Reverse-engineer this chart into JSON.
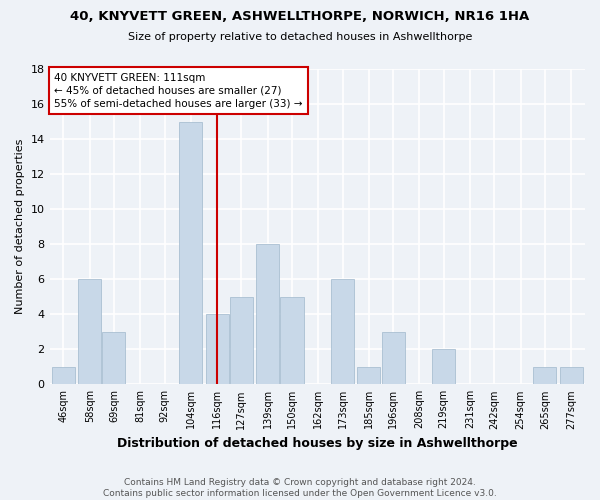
{
  "title": "40, KNYVETT GREEN, ASHWELLTHORPE, NORWICH, NR16 1HA",
  "subtitle": "Size of property relative to detached houses in Ashwellthorpe",
  "xlabel": "Distribution of detached houses by size in Ashwellthorpe",
  "ylabel": "Number of detached properties",
  "bar_color": "#c8d8e8",
  "bar_edge_color": "#a0b8cc",
  "bin_labels": [
    "46sqm",
    "58sqm",
    "69sqm",
    "81sqm",
    "92sqm",
    "104sqm",
    "116sqm",
    "127sqm",
    "139sqm",
    "150sqm",
    "162sqm",
    "173sqm",
    "185sqm",
    "196sqm",
    "208sqm",
    "219sqm",
    "231sqm",
    "242sqm",
    "254sqm",
    "265sqm",
    "277sqm"
  ],
  "bin_centers": [
    46,
    58,
    69,
    81,
    92,
    104,
    116,
    127,
    139,
    150,
    162,
    173,
    185,
    196,
    208,
    219,
    231,
    242,
    254,
    265,
    277
  ],
  "counts": [
    1,
    6,
    3,
    0,
    0,
    15,
    4,
    5,
    8,
    5,
    0,
    6,
    1,
    3,
    0,
    2,
    0,
    0,
    0,
    1,
    1
  ],
  "vline_x": 116,
  "annotation_text": "40 KNYVETT GREEN: 111sqm\n← 45% of detached houses are smaller (27)\n55% of semi-detached houses are larger (33) →",
  "annotation_box_color": "#ffffff",
  "annotation_box_edge_color": "#cc0000",
  "vline_color": "#cc0000",
  "footer_text": "Contains HM Land Registry data © Crown copyright and database right 2024.\nContains public sector information licensed under the Open Government Licence v3.0.",
  "background_color": "#eef2f7",
  "grid_color": "#ffffff",
  "ylim": [
    0,
    18
  ],
  "yticks": [
    0,
    2,
    4,
    6,
    8,
    10,
    12,
    14,
    16,
    18
  ]
}
